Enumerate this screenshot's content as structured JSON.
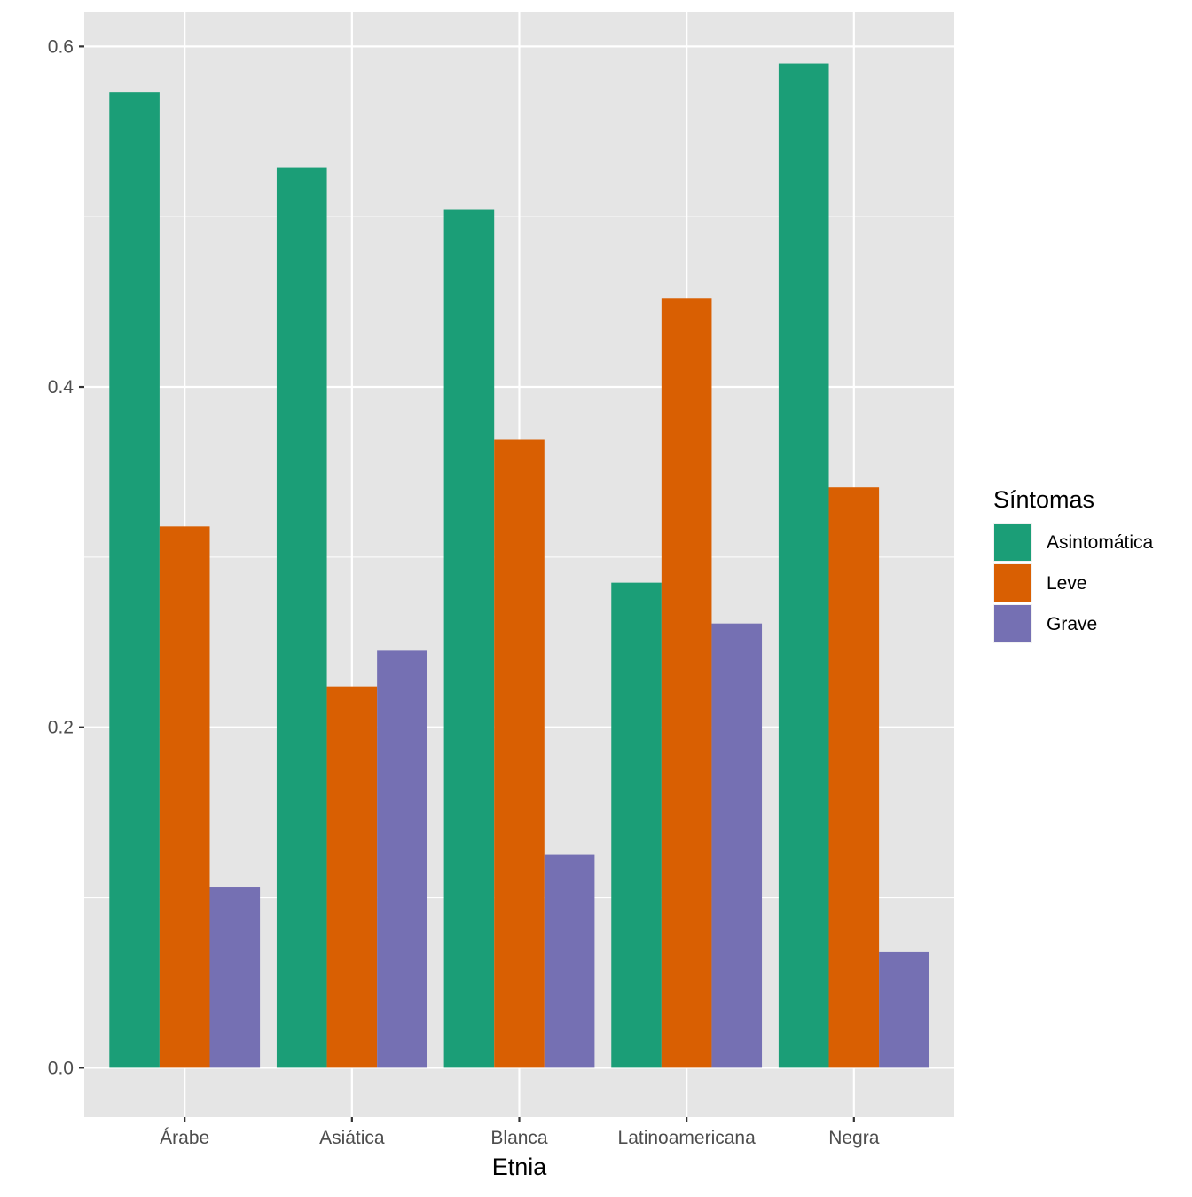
{
  "chart_data": {
    "type": "bar",
    "title": "",
    "xlabel": "Etnia",
    "ylabel": "",
    "categories": [
      "Árabe",
      "Asiática",
      "Blanca",
      "Latinoamericana",
      "Negra"
    ],
    "series": [
      {
        "name": "Asintomática",
        "color": "#1b9e77",
        "values": [
          0.573,
          0.529,
          0.504,
          0.285,
          0.59
        ]
      },
      {
        "name": "Leve",
        "color": "#d95f02",
        "values": [
          0.318,
          0.224,
          0.369,
          0.452,
          0.341
        ]
      },
      {
        "name": "Grave",
        "color": "#7570b3",
        "values": [
          0.106,
          0.245,
          0.125,
          0.261,
          0.068
        ]
      }
    ],
    "ylim": [
      -0.029,
      0.62
    ],
    "yticks": [
      0.0,
      0.2,
      0.4,
      0.6
    ],
    "ytick_labels": [
      "0.0",
      "0.2",
      "0.4",
      "0.6"
    ],
    "grid": true,
    "legend": {
      "title": "Síntomas",
      "placement": "right",
      "entries": [
        "Asintomática",
        "Leve",
        "Grave"
      ]
    },
    "colors": {
      "panel_background": "#e5e5e5",
      "grid_line": "#ffffff",
      "tick_text": "#4d4d4d"
    }
  }
}
